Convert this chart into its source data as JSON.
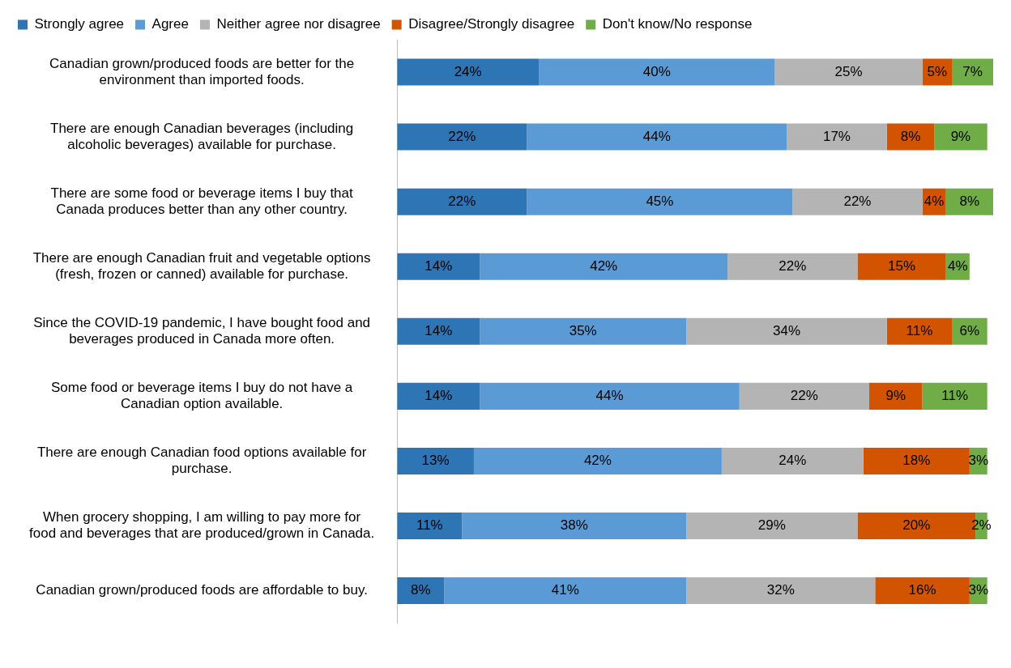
{
  "chart_data": {
    "type": "bar",
    "orientation": "horizontal",
    "stacked": true,
    "legend": "top",
    "grid": false,
    "tick_labels": "y",
    "categories": [
      "Canadian grown/produced foods are better for the environment than imported foods.",
      "There are enough Canadian beverages (including alcoholic beverages) available for purchase.",
      "There are some food or beverage items I buy that Canada produces better than any other country.",
      "There are enough Canadian fruit and vegetable options (fresh, frozen or canned) available for purchase.",
      "Since the COVID-19 pandemic, I have bought food and beverages produced in Canada more often.",
      "Some food or beverage items I buy do not have a Canadian option available.",
      "There are enough Canadian food options available for purchase.",
      "When grocery shopping, I am willing to pay more for food and beverages that are produced/grown in Canada.",
      "Canadian grown/produced foods are affordable to buy."
    ],
    "series": [
      {
        "name": "Strongly agree",
        "color": "#2e75b6",
        "values": [
          24,
          22,
          22,
          14,
          14,
          14,
          13,
          11,
          8
        ],
        "value_labels": [
          "24%",
          "22%",
          "22%",
          "14%",
          "14%",
          "14%",
          "13%",
          "11%",
          "8%"
        ]
      },
      {
        "name": "Agree",
        "color": "#5b9bd5",
        "values": [
          40,
          44,
          45,
          42,
          35,
          44,
          42,
          38,
          41
        ],
        "value_labels": [
          "40%",
          "44%",
          "45%",
          "42%",
          "35%",
          "44%",
          "42%",
          "38%",
          "41%"
        ]
      },
      {
        "name": "Neither agree nor disagree",
        "color": "#b4b4b4",
        "values": [
          25,
          17,
          22,
          22,
          34,
          22,
          24,
          29,
          32
        ],
        "value_labels": [
          "25%",
          "17%",
          "22%",
          "22%",
          "34%",
          "22%",
          "24%",
          "29%",
          "32%"
        ]
      },
      {
        "name": "Disagree/Strongly disagree",
        "color": "#d35400",
        "values": [
          5,
          8,
          4,
          15,
          11,
          9,
          18,
          20,
          16
        ],
        "value_labels": [
          "5%",
          "8%",
          "4%",
          "15%",
          "11%",
          "9%",
          "18%",
          "20%",
          "16%"
        ]
      },
      {
        "name": "Don't know/No response",
        "color": "#70ad47",
        "values": [
          7,
          9,
          8,
          4,
          6,
          11,
          3,
          2,
          3
        ],
        "value_labels": [
          "7%",
          "9%",
          "8%",
          "4%",
          "6%",
          "11%",
          "3%",
          "2%",
          "3%"
        ]
      }
    ]
  }
}
